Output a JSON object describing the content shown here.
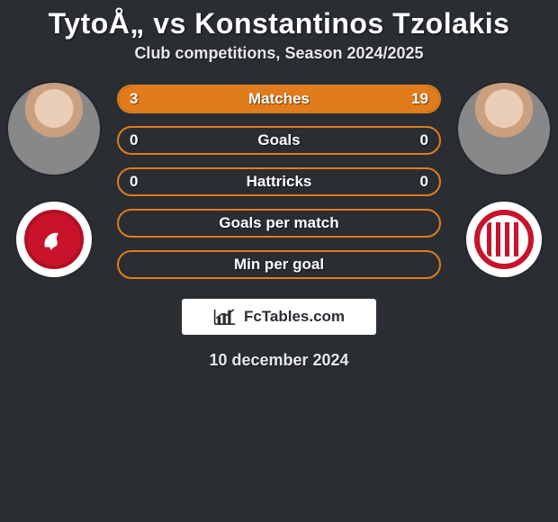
{
  "title": "TytoÅ„ vs Konstantinos Tzolakis",
  "subtitle": "Club competitions, Season 2024/2025",
  "date": "10 december 2024",
  "branding_text": "FcTables.com",
  "colors": {
    "background": "#2a2e33",
    "bar_border": "#e07c1b",
    "bar_fill": "#e07c1b",
    "text": "#ffffff"
  },
  "player_left": {
    "name": "TytoÅ„",
    "club_color": "#c9132b"
  },
  "player_right": {
    "name": "Konstantinos Tzolakis",
    "club_color": "#c9132b"
  },
  "stats": [
    {
      "label": "Matches",
      "left_value": "3",
      "right_value": "19",
      "left_pct": 14,
      "right_pct": 86
    },
    {
      "label": "Goals",
      "left_value": "0",
      "right_value": "0",
      "left_pct": 0,
      "right_pct": 0
    },
    {
      "label": "Hattricks",
      "left_value": "0",
      "right_value": "0",
      "left_pct": 0,
      "right_pct": 0
    },
    {
      "label": "Goals per match",
      "left_value": "",
      "right_value": "",
      "left_pct": 0,
      "right_pct": 0
    },
    {
      "label": "Min per goal",
      "left_value": "",
      "right_value": "",
      "left_pct": 0,
      "right_pct": 0
    }
  ]
}
